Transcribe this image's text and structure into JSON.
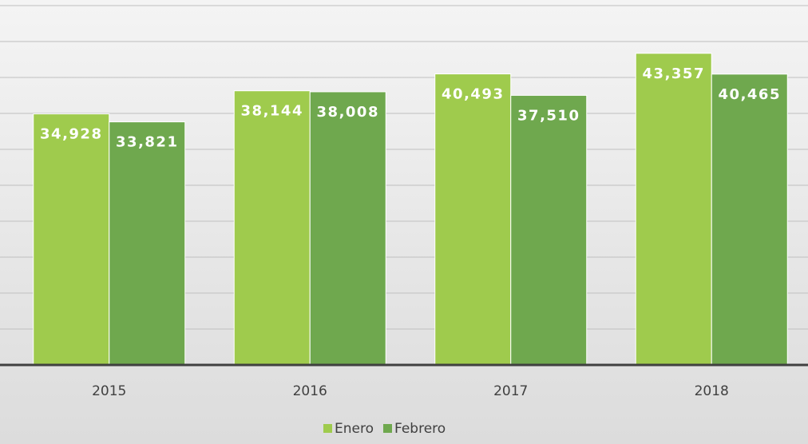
{
  "chart_data": {
    "type": "bar",
    "categories": [
      "2015",
      "2016",
      "2017",
      "2018"
    ],
    "series": [
      {
        "name": "Enero",
        "color": "#9fcb4d",
        "values": [
          34928,
          38144,
          40493,
          43357
        ],
        "value_labels": [
          "34,928",
          "38,144",
          "40,493",
          "43,357"
        ]
      },
      {
        "name": "Febrero",
        "color": "#6fa84e",
        "values": [
          33821,
          38008,
          37510,
          40465
        ],
        "value_labels": [
          "33,821",
          "38,008",
          "37,510",
          "40,465"
        ]
      }
    ],
    "ylim": [
      0,
      50000
    ],
    "yticks": [
      0,
      5000,
      10000,
      15000,
      20000,
      25000,
      30000,
      35000,
      40000,
      45000,
      50000
    ],
    "grid": true,
    "legend": "bottom"
  }
}
